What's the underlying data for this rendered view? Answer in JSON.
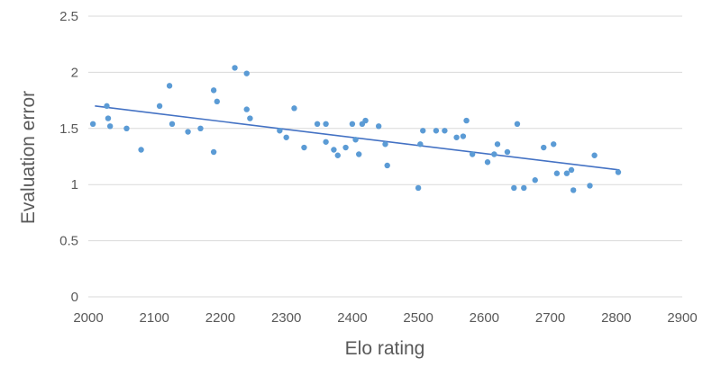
{
  "chart_data": {
    "type": "scatter",
    "xlabel": "Elo rating",
    "ylabel": "Evaluation error",
    "xlim": [
      2000,
      2900
    ],
    "ylim": [
      0,
      2.5
    ],
    "xticks": [
      "2000",
      "2100",
      "2200",
      "2300",
      "2400",
      "2500",
      "2600",
      "2700",
      "2800",
      "2900"
    ],
    "yticks": [
      "0",
      "0.5",
      "1",
      "1.5",
      "2",
      "2.5"
    ],
    "grid": "horizontal",
    "marker_color": "#5b9bd5",
    "trendline_color": "#4472c4",
    "trendline": {
      "type": "linear",
      "x": [
        2010,
        2805
      ],
      "y": [
        1.7,
        1.13
      ]
    },
    "points": [
      {
        "x": 2007,
        "y": 1.54
      },
      {
        "x": 2028,
        "y": 1.7
      },
      {
        "x": 2030,
        "y": 1.59
      },
      {
        "x": 2033,
        "y": 1.52
      },
      {
        "x": 2058,
        "y": 1.5
      },
      {
        "x": 2080,
        "y": 1.31
      },
      {
        "x": 2108,
        "y": 1.7
      },
      {
        "x": 2123,
        "y": 1.88
      },
      {
        "x": 2127,
        "y": 1.54
      },
      {
        "x": 2151,
        "y": 1.47
      },
      {
        "x": 2170,
        "y": 1.5
      },
      {
        "x": 2190,
        "y": 1.84
      },
      {
        "x": 2190,
        "y": 1.29
      },
      {
        "x": 2195,
        "y": 1.74
      },
      {
        "x": 2222,
        "y": 2.04
      },
      {
        "x": 2240,
        "y": 1.99
      },
      {
        "x": 2240,
        "y": 1.67
      },
      {
        "x": 2245,
        "y": 1.59
      },
      {
        "x": 2290,
        "y": 1.48
      },
      {
        "x": 2300,
        "y": 1.42
      },
      {
        "x": 2312,
        "y": 1.68
      },
      {
        "x": 2327,
        "y": 1.33
      },
      {
        "x": 2347,
        "y": 1.54
      },
      {
        "x": 2360,
        "y": 1.54
      },
      {
        "x": 2360,
        "y": 1.38
      },
      {
        "x": 2372,
        "y": 1.31
      },
      {
        "x": 2378,
        "y": 1.26
      },
      {
        "x": 2390,
        "y": 1.33
      },
      {
        "x": 2400,
        "y": 1.54
      },
      {
        "x": 2405,
        "y": 1.4
      },
      {
        "x": 2410,
        "y": 1.27
      },
      {
        "x": 2415,
        "y": 1.54
      },
      {
        "x": 2420,
        "y": 1.57
      },
      {
        "x": 2440,
        "y": 1.52
      },
      {
        "x": 2450,
        "y": 1.36
      },
      {
        "x": 2453,
        "y": 1.17
      },
      {
        "x": 2500,
        "y": 0.97
      },
      {
        "x": 2503,
        "y": 1.36
      },
      {
        "x": 2507,
        "y": 1.48
      },
      {
        "x": 2527,
        "y": 1.48
      },
      {
        "x": 2540,
        "y": 1.48
      },
      {
        "x": 2558,
        "y": 1.42
      },
      {
        "x": 2568,
        "y": 1.43
      },
      {
        "x": 2573,
        "y": 1.57
      },
      {
        "x": 2582,
        "y": 1.27
      },
      {
        "x": 2605,
        "y": 1.2
      },
      {
        "x": 2615,
        "y": 1.27
      },
      {
        "x": 2620,
        "y": 1.36
      },
      {
        "x": 2635,
        "y": 1.29
      },
      {
        "x": 2645,
        "y": 0.97
      },
      {
        "x": 2650,
        "y": 1.54
      },
      {
        "x": 2660,
        "y": 0.97
      },
      {
        "x": 2677,
        "y": 1.04
      },
      {
        "x": 2690,
        "y": 1.33
      },
      {
        "x": 2705,
        "y": 1.36
      },
      {
        "x": 2710,
        "y": 1.1
      },
      {
        "x": 2725,
        "y": 1.1
      },
      {
        "x": 2732,
        "y": 1.13
      },
      {
        "x": 2735,
        "y": 0.95
      },
      {
        "x": 2760,
        "y": 0.99
      },
      {
        "x": 2767,
        "y": 1.26
      },
      {
        "x": 2803,
        "y": 1.11
      }
    ]
  }
}
